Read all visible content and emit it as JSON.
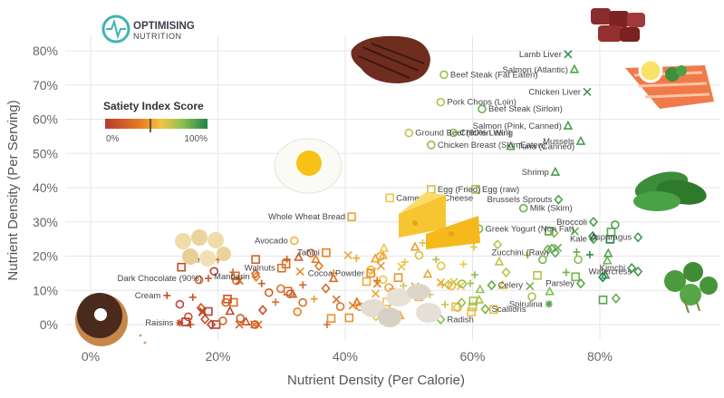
{
  "brand": {
    "name_line1": "OPTIMISING",
    "name_line2": "NUTRITION"
  },
  "legend": {
    "title": "Satiety Index Score",
    "min_label": "0%",
    "max_label": "100%"
  },
  "colors": {
    "grid": "#e6e6e6",
    "low": "#c0392b",
    "mid": "#f39c12",
    "high": "#27ae60"
  },
  "chart_data": {
    "type": "scatter",
    "title": "",
    "xlabel": "Nutrient Density (Per Calorie)",
    "ylabel": "Nutrient Density (Per Serving)",
    "xlim": [
      -4,
      93
    ],
    "ylim": [
      -3,
      83
    ],
    "xticks": [
      "0%",
      "20%",
      "40%",
      "60%",
      "80%"
    ],
    "yticks": [
      "0%",
      "10%",
      "20%",
      "30%",
      "40%",
      "50%",
      "60%",
      "70%",
      "80%"
    ],
    "color_scale": "Satiety Index Score (0% red → 100% green)",
    "labeled_points": [
      {
        "label": "Lamb Liver",
        "x": 75,
        "y": 79,
        "satiety": 95,
        "shape": "x"
      },
      {
        "label": "Beef Steak (Fat Eaten)",
        "x": 55.5,
        "y": 73,
        "satiety": 72,
        "shape": "circle"
      },
      {
        "label": "Salmon (Atlantic)",
        "x": 76,
        "y": 74.5,
        "satiety": 88,
        "shape": "triangle"
      },
      {
        "label": "Chicken Liver",
        "x": 78,
        "y": 68,
        "satiety": 92,
        "shape": "x"
      },
      {
        "label": "Beef Steak (Sirloin)",
        "x": 61.5,
        "y": 63,
        "satiety": 82,
        "shape": "circle"
      },
      {
        "label": "Pork Chops (Loin)",
        "x": 55,
        "y": 65,
        "satiety": 70,
        "shape": "circle"
      },
      {
        "label": "Ground Beef (80% Lean)",
        "x": 50,
        "y": 56,
        "satiety": 65,
        "shape": "circle"
      },
      {
        "label": "Chicken Wing",
        "x": 57,
        "y": 56,
        "satiety": 74,
        "shape": "circle"
      },
      {
        "label": "Salmon (Pink, Canned)",
        "x": 75,
        "y": 58,
        "satiety": 90,
        "shape": "triangle"
      },
      {
        "label": "Chicken Breast (Skin Eaten)",
        "x": 53.5,
        "y": 52.5,
        "satiety": 76,
        "shape": "circle"
      },
      {
        "label": "Tuna (Canned)",
        "x": 66,
        "y": 52,
        "satiety": 88,
        "shape": "triangle"
      },
      {
        "label": "Mussels",
        "x": 77,
        "y": 53.5,
        "satiety": 90,
        "shape": "triangle"
      },
      {
        "label": "Shrimp",
        "x": 73,
        "y": 44.5,
        "satiety": 90,
        "shape": "triangle"
      },
      {
        "label": "Egg (Fried)",
        "x": 53.5,
        "y": 39.5,
        "satiety": 62,
        "shape": "square"
      },
      {
        "label": "Egg (raw)",
        "x": 60.5,
        "y": 39.5,
        "satiety": 70,
        "shape": "square"
      },
      {
        "label": "Camembert Cheese",
        "x": 47,
        "y": 37,
        "satiety": 55,
        "shape": "square"
      },
      {
        "label": "Brussels Sprouts",
        "x": 73.5,
        "y": 36.5,
        "satiety": 88,
        "shape": "diamond"
      },
      {
        "label": "Milk (Skim)",
        "x": 68,
        "y": 34,
        "satiety": 82,
        "shape": "circle"
      },
      {
        "label": "Whole Wheat Bread",
        "x": 41,
        "y": 31.5,
        "satiety": 45,
        "shape": "square"
      },
      {
        "label": "Broccoli",
        "x": 79,
        "y": 30,
        "satiety": 90,
        "shape": "diamond"
      },
      {
        "label": "Greek Yogurt (Non Fat)",
        "x": 61,
        "y": 28,
        "satiety": 80,
        "shape": "circle"
      },
      {
        "label": "Avocado",
        "x": 32,
        "y": 24.5,
        "satiety": 50,
        "shape": "circle"
      },
      {
        "label": "Kale",
        "x": 79,
        "y": 25,
        "satiety": 90,
        "shape": "diamond"
      },
      {
        "label": "Asparagus",
        "x": 86,
        "y": 25.5,
        "satiety": 92,
        "shape": "diamond"
      },
      {
        "label": "Zucchini (Raw)",
        "x": 73,
        "y": 21,
        "satiety": 86,
        "shape": "diamond"
      },
      {
        "label": "Tahini",
        "x": 37,
        "y": 21,
        "satiety": 35,
        "shape": "square"
      },
      {
        "label": "Prunes",
        "x": 20,
        "y": 19,
        "satiety": 25,
        "shape": "plus"
      },
      {
        "label": "Walnuts",
        "x": 30,
        "y": 16.5,
        "satiety": 28,
        "shape": "square"
      },
      {
        "label": "Kimchi",
        "x": 85,
        "y": 16.5,
        "satiety": 92,
        "shape": "diamond"
      },
      {
        "label": "Cocoa Powder",
        "x": 44,
        "y": 15,
        "satiety": 40,
        "shape": "square"
      },
      {
        "label": "Mandarin",
        "x": 26,
        "y": 14,
        "satiety": 35,
        "shape": "diamond"
      },
      {
        "label": "Dark Chocolate (90%)",
        "x": 18.5,
        "y": 13.5,
        "satiety": 15,
        "shape": "plus"
      },
      {
        "label": "Parsley",
        "x": 77,
        "y": 12,
        "satiety": 86,
        "shape": "diamond"
      },
      {
        "label": "Watercress",
        "x": 86,
        "y": 15.5,
        "satiety": 92,
        "shape": "diamond"
      },
      {
        "label": "Celery",
        "x": 63,
        "y": 11.5,
        "satiety": 84,
        "shape": "diamond"
      },
      {
        "label": "Cream",
        "x": 12,
        "y": 8.5,
        "satiety": 8,
        "shape": "plus"
      },
      {
        "label": "Spirulina",
        "x": 72,
        "y": 6,
        "satiety": 86,
        "shape": "star"
      },
      {
        "label": "Scallions",
        "x": 62,
        "y": 4.5,
        "satiety": 80,
        "shape": "diamond"
      },
      {
        "label": "Radish",
        "x": 55,
        "y": 1.5,
        "satiety": 76,
        "shape": "diamond"
      },
      {
        "label": "Raisins",
        "x": 14,
        "y": 0.5,
        "satiety": 10,
        "shape": "star"
      }
    ]
  }
}
